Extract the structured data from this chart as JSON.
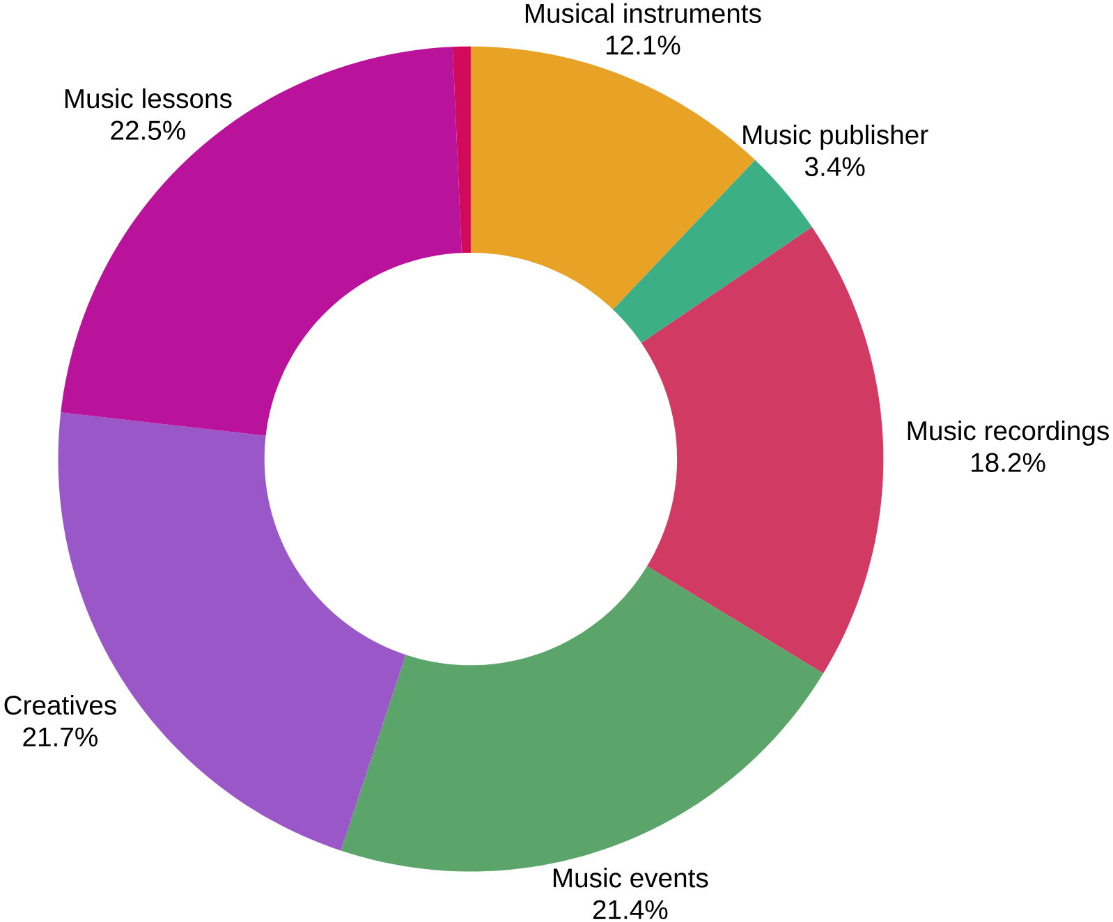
{
  "chart_data": {
    "type": "donut",
    "categories": [
      "Musical instruments",
      "Music publisher",
      "Music recordings",
      "Music events",
      "Creatives",
      "Music lessons",
      null
    ],
    "values": [
      12.1,
      3.4,
      18.2,
      21.4,
      21.7,
      22.5,
      0.7
    ],
    "value_labels": [
      "12.1%",
      "3.4%",
      "18.2%",
      "21.4%",
      "21.7%",
      "22.5%",
      null
    ],
    "colors": [
      "#e8a226",
      "#3daf87",
      "#d13a62",
      "#5ba56b",
      "#9a57c8",
      "#b8139a",
      "#d10a5c"
    ]
  }
}
